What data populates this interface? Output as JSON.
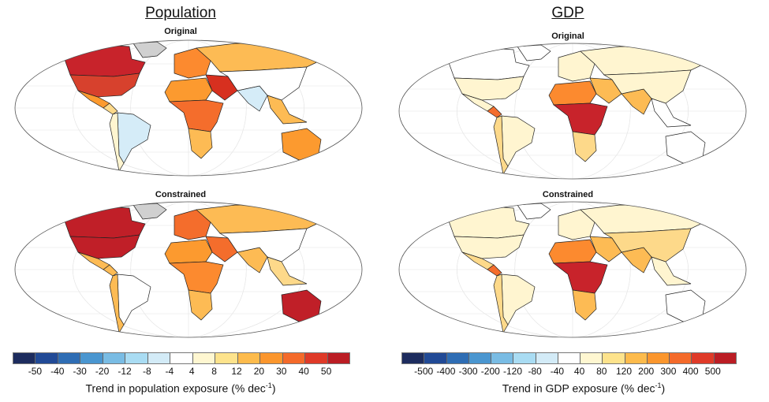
{
  "panels": [
    {
      "title": "Population",
      "maps": [
        {
          "label": "Original",
          "colors": {
            "greenland": "#d0d0d0",
            "canada": "#c8232b",
            "usa": "#d7412d",
            "mexico": "#fc9a2f",
            "central_america": "#fdd98a",
            "south_america": "#d5ecf8",
            "south_america_west": "#fff5d0",
            "europe": "#fc8a2f",
            "russia": "#fdbb54",
            "middle_east": "#d7301f",
            "africa_north": "#fc9a2f",
            "africa_central": "#f46d2c",
            "africa_south": "#fdbb54",
            "south_asia": "#d5ecf8",
            "east_asia": "#ffffff",
            "se_asia": "#fdbb54",
            "australia": "#fc9a2f"
          }
        },
        {
          "label": "Constrained",
          "colors": {
            "greenland": "#d0d0d0",
            "canada": "#c01f28",
            "usa": "#c01f28",
            "mexico": "#fdbb54",
            "central_america": "#fdbb54",
            "south_america": "#ffffff",
            "south_america_west": "#fdbb54",
            "europe": "#f46d2c",
            "russia": "#fdbb54",
            "middle_east": "#f46d2c",
            "africa_north": "#fc9a2f",
            "africa_central": "#fc8a2f",
            "africa_south": "#fdbb54",
            "south_asia": "#fdbb54",
            "east_asia": "#ffffff",
            "se_asia": "#fdd98a",
            "australia": "#c01f28"
          }
        }
      ]
    },
    {
      "title": "GDP",
      "maps": [
        {
          "label": "Original",
          "colors": {
            "greenland": "#ffffff",
            "canada": "#ffffff",
            "usa": "#fff5d0",
            "mexico": "#fff5d0",
            "central_america": "#f46d2c",
            "south_america": "#fff5d0",
            "south_america_west": "#fdd98a",
            "europe": "#fff5d0",
            "russia": "#fff5d0",
            "middle_east": "#fdbb54",
            "africa_north": "#fc8a2f",
            "africa_central": "#c8232b",
            "africa_south": "#fdd98a",
            "south_asia": "#fdbb54",
            "east_asia": "#fff5d0",
            "se_asia": "#ffffff",
            "australia": "#ffffff"
          }
        },
        {
          "label": "Constrained",
          "colors": {
            "greenland": "#ffffff",
            "canada": "#fff5d0",
            "usa": "#fff5d0",
            "mexico": "#fdd98a",
            "central_america": "#f46d2c",
            "south_america": "#fff5d0",
            "south_america_west": "#fdd98a",
            "europe": "#fff5d0",
            "russia": "#fff5d0",
            "middle_east": "#fdbb54",
            "africa_north": "#fc8a2f",
            "africa_central": "#c8232b",
            "africa_south": "#fdbb54",
            "south_asia": "#fdbb54",
            "east_asia": "#fdd98a",
            "se_asia": "#fff5d0",
            "australia": "#ffffff"
          }
        }
      ]
    }
  ],
  "colorbar_colors": [
    "#1d2c5e",
    "#214a96",
    "#2e6db4",
    "#4a96d0",
    "#79bce4",
    "#a9dcf3",
    "#d3ebf7",
    "#ffffff",
    "#fff7d1",
    "#fde38c",
    "#fdbb4c",
    "#fb962d",
    "#f46a2a",
    "#df3a28",
    "#bb1d24"
  ],
  "legends": [
    {
      "ticks": [
        "-50",
        "-40",
        "-30",
        "-20",
        "-12",
        "-8",
        "-4",
        "4",
        "8",
        "12",
        "20",
        "30",
        "40",
        "50"
      ],
      "label": "Trend in population exposure (% dec",
      "label_sup": "-1",
      "label_end": ")"
    },
    {
      "ticks": [
        "-500",
        "-400",
        "-300",
        "-200",
        "-120",
        "-80",
        "-40",
        "40",
        "80",
        "120",
        "200",
        "300",
        "400",
        "500"
      ],
      "label": "Trend in GDP exposure (% dec",
      "label_sup": "-1",
      "label_end": ")"
    }
  ]
}
